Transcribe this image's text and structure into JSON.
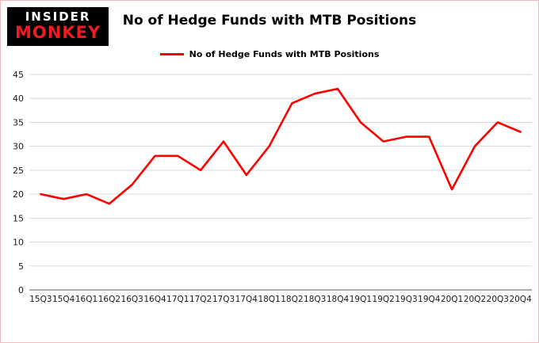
{
  "logo": {
    "line1": "INSIDER",
    "line2": "MONKEY"
  },
  "title": "No of Hedge Funds with MTB Positions",
  "legend": {
    "label": "No of Hedge Funds with MTB Positions"
  },
  "colors": {
    "line": "#ff0000",
    "grid": "#d9d9d9",
    "zero_axis": "#555555",
    "tick_text": "#1a1a1a",
    "logo_bg": "#000000",
    "logo_insider": "#ffffff",
    "logo_monkey": "#ed1c24",
    "border": "#eebcbc"
  },
  "chart_data": {
    "type": "line",
    "title": "No of Hedge Funds with MTB Positions",
    "xlabel": "",
    "ylabel": "",
    "ylim": [
      0,
      45
    ],
    "ytick_step": 5,
    "grid": true,
    "legend_position": "top",
    "categories": [
      "15Q3",
      "15Q4",
      "16Q1",
      "16Q2",
      "16Q3",
      "16Q4",
      "17Q1",
      "17Q2",
      "17Q3",
      "17Q4",
      "18Q1",
      "18Q2",
      "18Q3",
      "18Q4",
      "19Q1",
      "19Q2",
      "19Q3",
      "19Q4",
      "20Q1",
      "20Q2",
      "20Q3",
      "20Q4"
    ],
    "series": [
      {
        "name": "No of Hedge Funds with MTB Positions",
        "color": "#ff0000",
        "values": [
          20,
          19,
          20,
          18,
          22,
          28,
          28,
          25,
          31,
          24,
          30,
          39,
          41,
          42,
          35,
          31,
          32,
          32,
          21,
          30,
          35,
          33
        ]
      }
    ]
  }
}
